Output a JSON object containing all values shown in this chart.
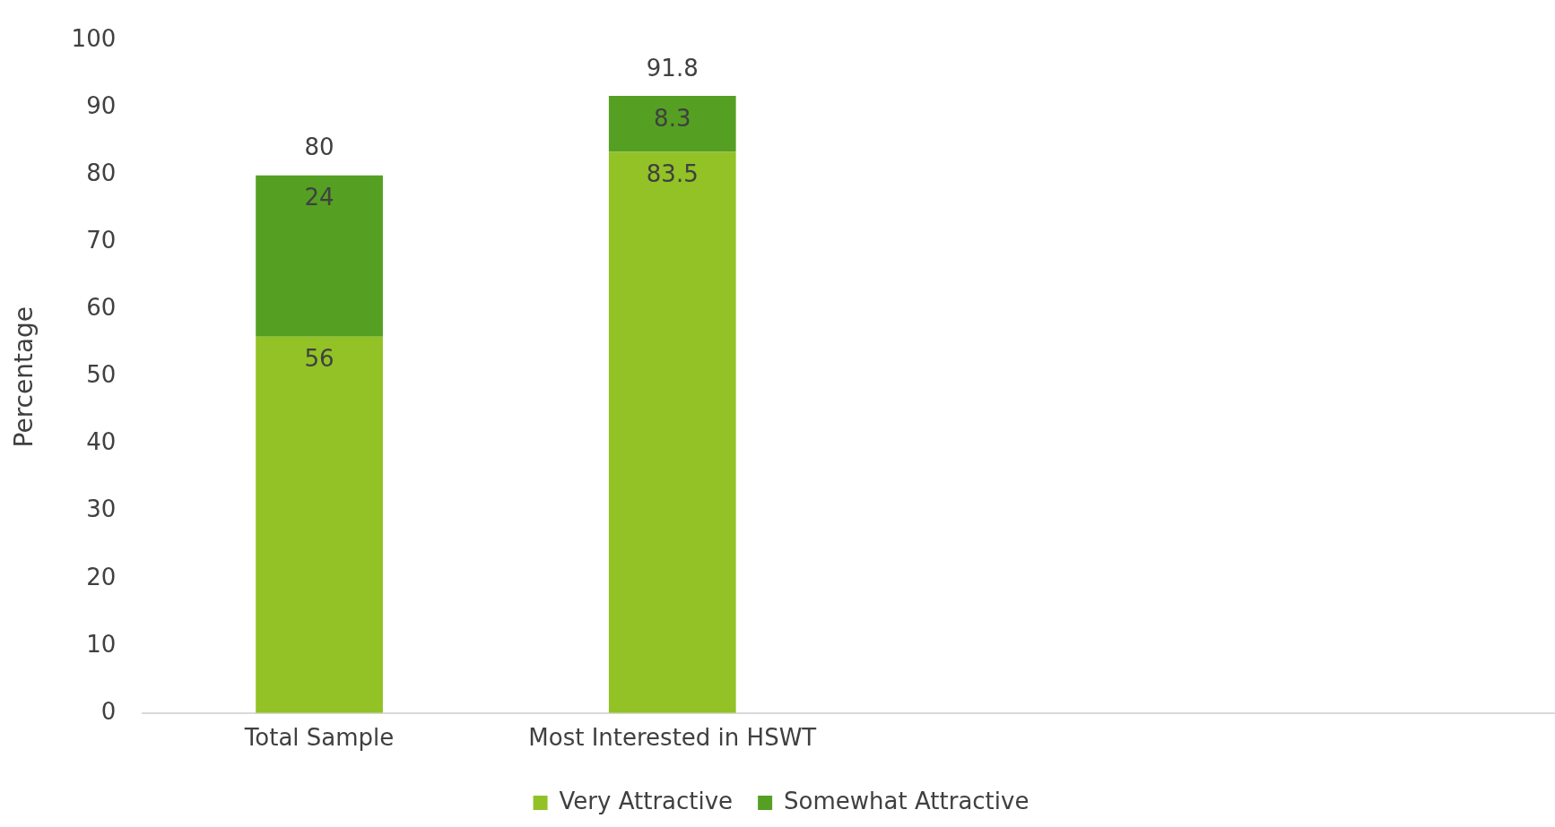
{
  "chart_data": {
    "type": "bar",
    "stacked": true,
    "ylabel": "Percentage",
    "categories": [
      "Total Sample",
      "Most Interested in HSWT",
      null,
      null
    ],
    "series": [
      {
        "name": "Very Attractive",
        "color": "#92c226",
        "values": [
          56,
          83.5,
          null,
          null
        ]
      },
      {
        "name": "Somewhat Attractive",
        "color": "#55a022",
        "values": [
          24,
          8.3,
          null,
          null
        ]
      }
    ],
    "ylim": [
      0,
      100
    ],
    "yticks": [
      0,
      10,
      20,
      30,
      40,
      50,
      60,
      70,
      80,
      90,
      100
    ],
    "grid": false,
    "legend": "bottom",
    "data_labels": true,
    "totals": [
      "80",
      "91.8",
      null,
      null
    ]
  }
}
